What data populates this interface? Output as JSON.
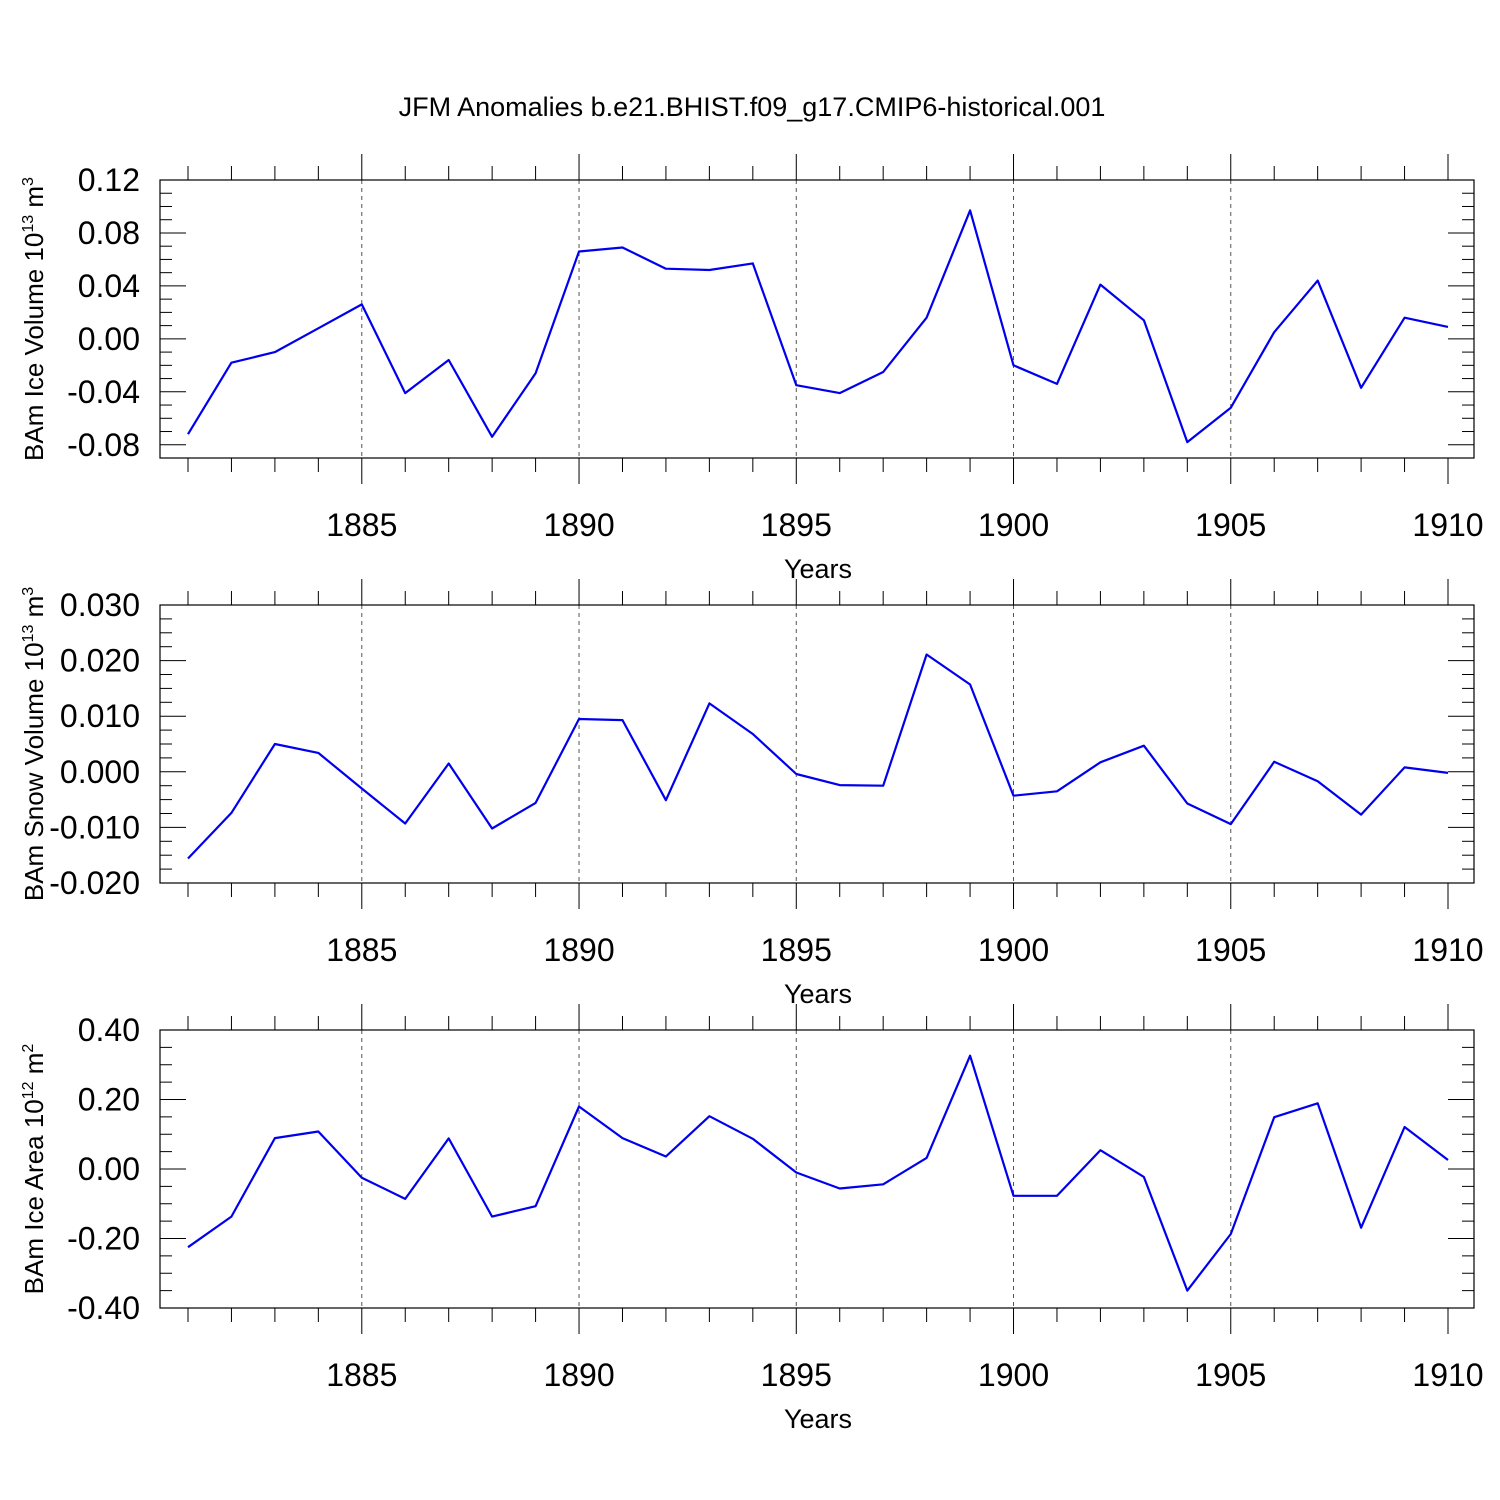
{
  "title": "JFM Anomalies b.e21.BHIST.f09_g17.CMIP6-historical.001",
  "colors": {
    "line": "#0000ee",
    "axis": "#000000",
    "grid": "#555555"
  },
  "chart_data": [
    {
      "type": "line",
      "ylabel": {
        "text": "BAm Ice Volume 10",
        "exp": "13",
        "unit": " m",
        "unit_exp": "3"
      },
      "xlabel": "Years",
      "xlim": [
        1881,
        1910
      ],
      "ylim": [
        -0.09,
        0.12
      ],
      "grid": "vertical dashed at major x ticks",
      "x_ticks": [
        1885,
        1890,
        1895,
        1900,
        1905,
        1910
      ],
      "x_tick_labels": [
        "1885",
        "1890",
        "1895",
        "1900",
        "1905",
        "1910"
      ],
      "y_ticks": [
        -0.08,
        -0.04,
        0.0,
        0.04,
        0.08,
        0.12
      ],
      "y_tick_labels": [
        "-0.08",
        "-0.04",
        "0.00",
        "0.04",
        "0.08",
        "0.12"
      ],
      "x": [
        1881,
        1882,
        1883,
        1884,
        1885,
        1886,
        1887,
        1888,
        1889,
        1890,
        1891,
        1892,
        1893,
        1894,
        1895,
        1896,
        1897,
        1898,
        1899,
        1900,
        1901,
        1902,
        1903,
        1904,
        1905,
        1906,
        1907,
        1908,
        1909,
        1910
      ],
      "values": [
        -0.072,
        -0.018,
        -0.01,
        0.008,
        0.026,
        -0.041,
        -0.016,
        -0.074,
        -0.026,
        0.066,
        0.069,
        0.053,
        0.052,
        0.057,
        -0.035,
        -0.041,
        -0.025,
        0.016,
        0.097,
        -0.02,
        -0.034,
        0.041,
        0.014,
        -0.078,
        -0.052,
        0.005,
        0.044,
        -0.037,
        0.016,
        0.009
      ]
    },
    {
      "type": "line",
      "ylabel": {
        "text": "BAm Snow Volume 10",
        "exp": "13",
        "unit": " m",
        "unit_exp": "3"
      },
      "xlabel": "Years",
      "xlim": [
        1881,
        1910
      ],
      "ylim": [
        -0.02,
        0.03
      ],
      "grid": "vertical dashed at major x ticks",
      "x_ticks": [
        1885,
        1890,
        1895,
        1900,
        1905,
        1910
      ],
      "x_tick_labels": [
        "1885",
        "1890",
        "1895",
        "1900",
        "1905",
        "1910"
      ],
      "y_ticks": [
        -0.02,
        -0.01,
        0.0,
        0.01,
        0.02,
        0.03
      ],
      "y_tick_labels": [
        "-0.020",
        "-0.010",
        "0.000",
        "0.010",
        "0.020",
        "0.030"
      ],
      "x": [
        1881,
        1882,
        1883,
        1884,
        1885,
        1886,
        1887,
        1888,
        1889,
        1890,
        1891,
        1892,
        1893,
        1894,
        1895,
        1896,
        1897,
        1898,
        1899,
        1900,
        1901,
        1902,
        1903,
        1904,
        1905,
        1906,
        1907,
        1908,
        1909,
        1910
      ],
      "values": [
        -0.0156,
        -0.0074,
        0.005,
        0.0034,
        -0.003,
        -0.0093,
        0.0015,
        -0.0102,
        -0.0056,
        0.0095,
        0.0093,
        -0.0051,
        0.0123,
        0.0068,
        -0.0004,
        -0.0024,
        -0.0025,
        0.0211,
        0.0157,
        -0.0043,
        -0.0035,
        0.0017,
        0.0047,
        -0.0057,
        -0.0094,
        0.0018,
        -0.0017,
        -0.0077,
        0.0008,
        -0.0002
      ]
    },
    {
      "type": "line",
      "ylabel": {
        "text": "BAm Ice Area 10",
        "exp": "12",
        "unit": " m",
        "unit_exp": "2"
      },
      "xlabel": "Years",
      "xlim": [
        1881,
        1910
      ],
      "ylim": [
        -0.4,
        0.4
      ],
      "grid": "vertical dashed at major x ticks",
      "x_ticks": [
        1885,
        1890,
        1895,
        1900,
        1905,
        1910
      ],
      "x_tick_labels": [
        "1885",
        "1890",
        "1895",
        "1900",
        "1905",
        "1910"
      ],
      "y_ticks": [
        -0.4,
        -0.2,
        0.0,
        0.2,
        0.4
      ],
      "y_tick_labels": [
        "-0.40",
        "-0.20",
        "0.00",
        "0.20",
        "0.40"
      ],
      "x": [
        1881,
        1882,
        1883,
        1884,
        1885,
        1886,
        1887,
        1888,
        1889,
        1890,
        1891,
        1892,
        1893,
        1894,
        1895,
        1896,
        1897,
        1898,
        1899,
        1900,
        1901,
        1902,
        1903,
        1904,
        1905,
        1906,
        1907,
        1908,
        1909,
        1910
      ],
      "values": [
        -0.225,
        -0.137,
        0.089,
        0.108,
        -0.025,
        -0.086,
        0.088,
        -0.137,
        -0.107,
        0.18,
        0.089,
        0.036,
        0.152,
        0.087,
        -0.01,
        -0.056,
        -0.044,
        0.032,
        0.326,
        -0.077,
        -0.077,
        0.054,
        -0.023,
        -0.35,
        -0.187,
        0.149,
        0.189,
        -0.169,
        0.121,
        0.026
      ]
    }
  ]
}
